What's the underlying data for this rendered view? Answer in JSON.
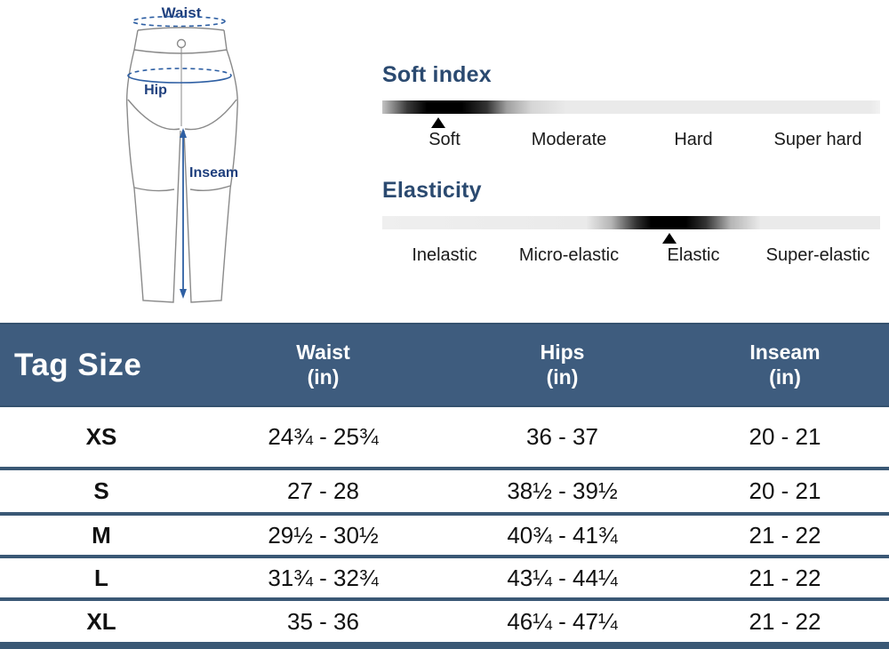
{
  "diagram": {
    "waist_label": "Waist",
    "hip_label": "Hip",
    "inseam_label": "Inseam"
  },
  "soft_index": {
    "title": "Soft index",
    "labels": [
      "Soft",
      "Moderate",
      "Hard",
      "Super hard"
    ],
    "selected": "Soft",
    "marker_pct": 11.3
  },
  "elasticity": {
    "title": "Elasticity",
    "labels": [
      "Inelastic",
      "Micro-elastic",
      "Elastic",
      "Super-elastic"
    ],
    "selected": "Elastic",
    "marker_pct": 57.7
  },
  "size_table": {
    "header": {
      "size_col": "Tag Size",
      "cols": [
        {
          "label": "Waist",
          "unit": "(in)"
        },
        {
          "label": "Hips",
          "unit": "(in)"
        },
        {
          "label": "Inseam",
          "unit": "(in)"
        }
      ]
    },
    "rows": [
      {
        "size": "XS",
        "waist": "24¾ - 25¾",
        "hips": "36 - 37",
        "inseam": "20 - 21"
      },
      {
        "size": "S",
        "waist": "27 - 28",
        "hips": "38½ - 39½",
        "inseam": "20 - 21"
      },
      {
        "size": "M",
        "waist": "29½ - 30½",
        "hips": "40¾ - 41¾",
        "inseam": "21 - 22"
      },
      {
        "size": "L",
        "waist": "31¾ - 32¾",
        "hips": "43¼ - 44¼",
        "inseam": "21 - 22"
      },
      {
        "size": "XL",
        "waist": "35 - 36",
        "hips": "46¼ - 47¼",
        "inseam": "21 - 22"
      }
    ]
  },
  "chart_data": {
    "type": "table",
    "title": "Tag Size",
    "columns": [
      "Tag Size",
      "Waist (in)",
      "Hips (in)",
      "Inseam (in)"
    ],
    "rows": [
      [
        "XS",
        "24¾ - 25¾",
        "36 - 37",
        "20 - 21"
      ],
      [
        "S",
        "27 - 28",
        "38½ - 39½",
        "20 - 21"
      ],
      [
        "M",
        "29½ - 30½",
        "40¾ - 41¾",
        "21 - 22"
      ],
      [
        "L",
        "31¾ - 32¾",
        "43¼ - 44¼",
        "21 - 22"
      ],
      [
        "XL",
        "35 - 36",
        "46¼ - 47¼",
        "21 - 22"
      ]
    ]
  },
  "colors": {
    "header_bg": "#3e5c7e",
    "divider": "#3a5875",
    "scale_heading": "#2b4a70",
    "diagram_label": "#1e3f7d",
    "diagram_measure_line": "#2e5fa3",
    "pants_outline": "#8a8a8a"
  }
}
